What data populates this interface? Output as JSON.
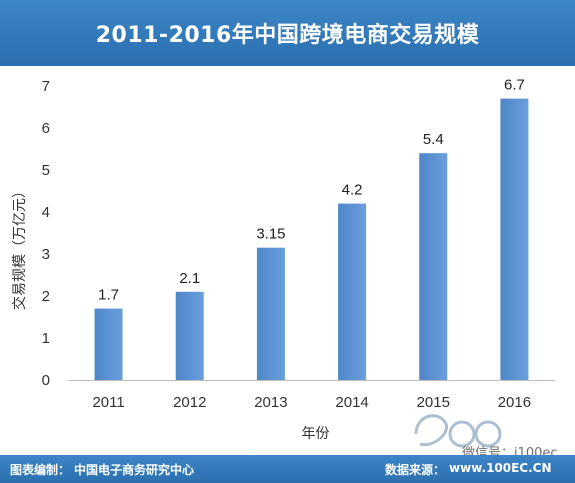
{
  "header": {
    "title": "2011-2016年中国跨境电商交易规模"
  },
  "chart_data": {
    "type": "bar",
    "title": "2011-2016年中国跨境电商交易规模",
    "categories": [
      "2011",
      "2012",
      "2013",
      "2014",
      "2015",
      "2016"
    ],
    "values": [
      1.7,
      2.1,
      3.15,
      4.2,
      5.4,
      6.7
    ],
    "value_labels": [
      "1.7",
      "2.1",
      "3.15",
      "4.2",
      "5.4",
      "6.7"
    ],
    "xlabel": "年份",
    "ylabel": "交易规模（万亿元）",
    "ylim": [
      0,
      7
    ],
    "yticks": [
      "0",
      "1",
      "2",
      "3",
      "4",
      "5",
      "6",
      "7"
    ],
    "grid": false,
    "colors": {
      "bar": "#6a9fdc",
      "bar_dark": "#4f86c8"
    }
  },
  "footer": {
    "credit_label": "图表编制：",
    "credit_value": "中国电子商务研究中心",
    "source_label": "数据来源：",
    "source_value": "www.100EC.CN"
  },
  "watermark": {
    "wechat": "微信号：i100ec",
    "logo_icon": "100ec-logo-icon"
  }
}
